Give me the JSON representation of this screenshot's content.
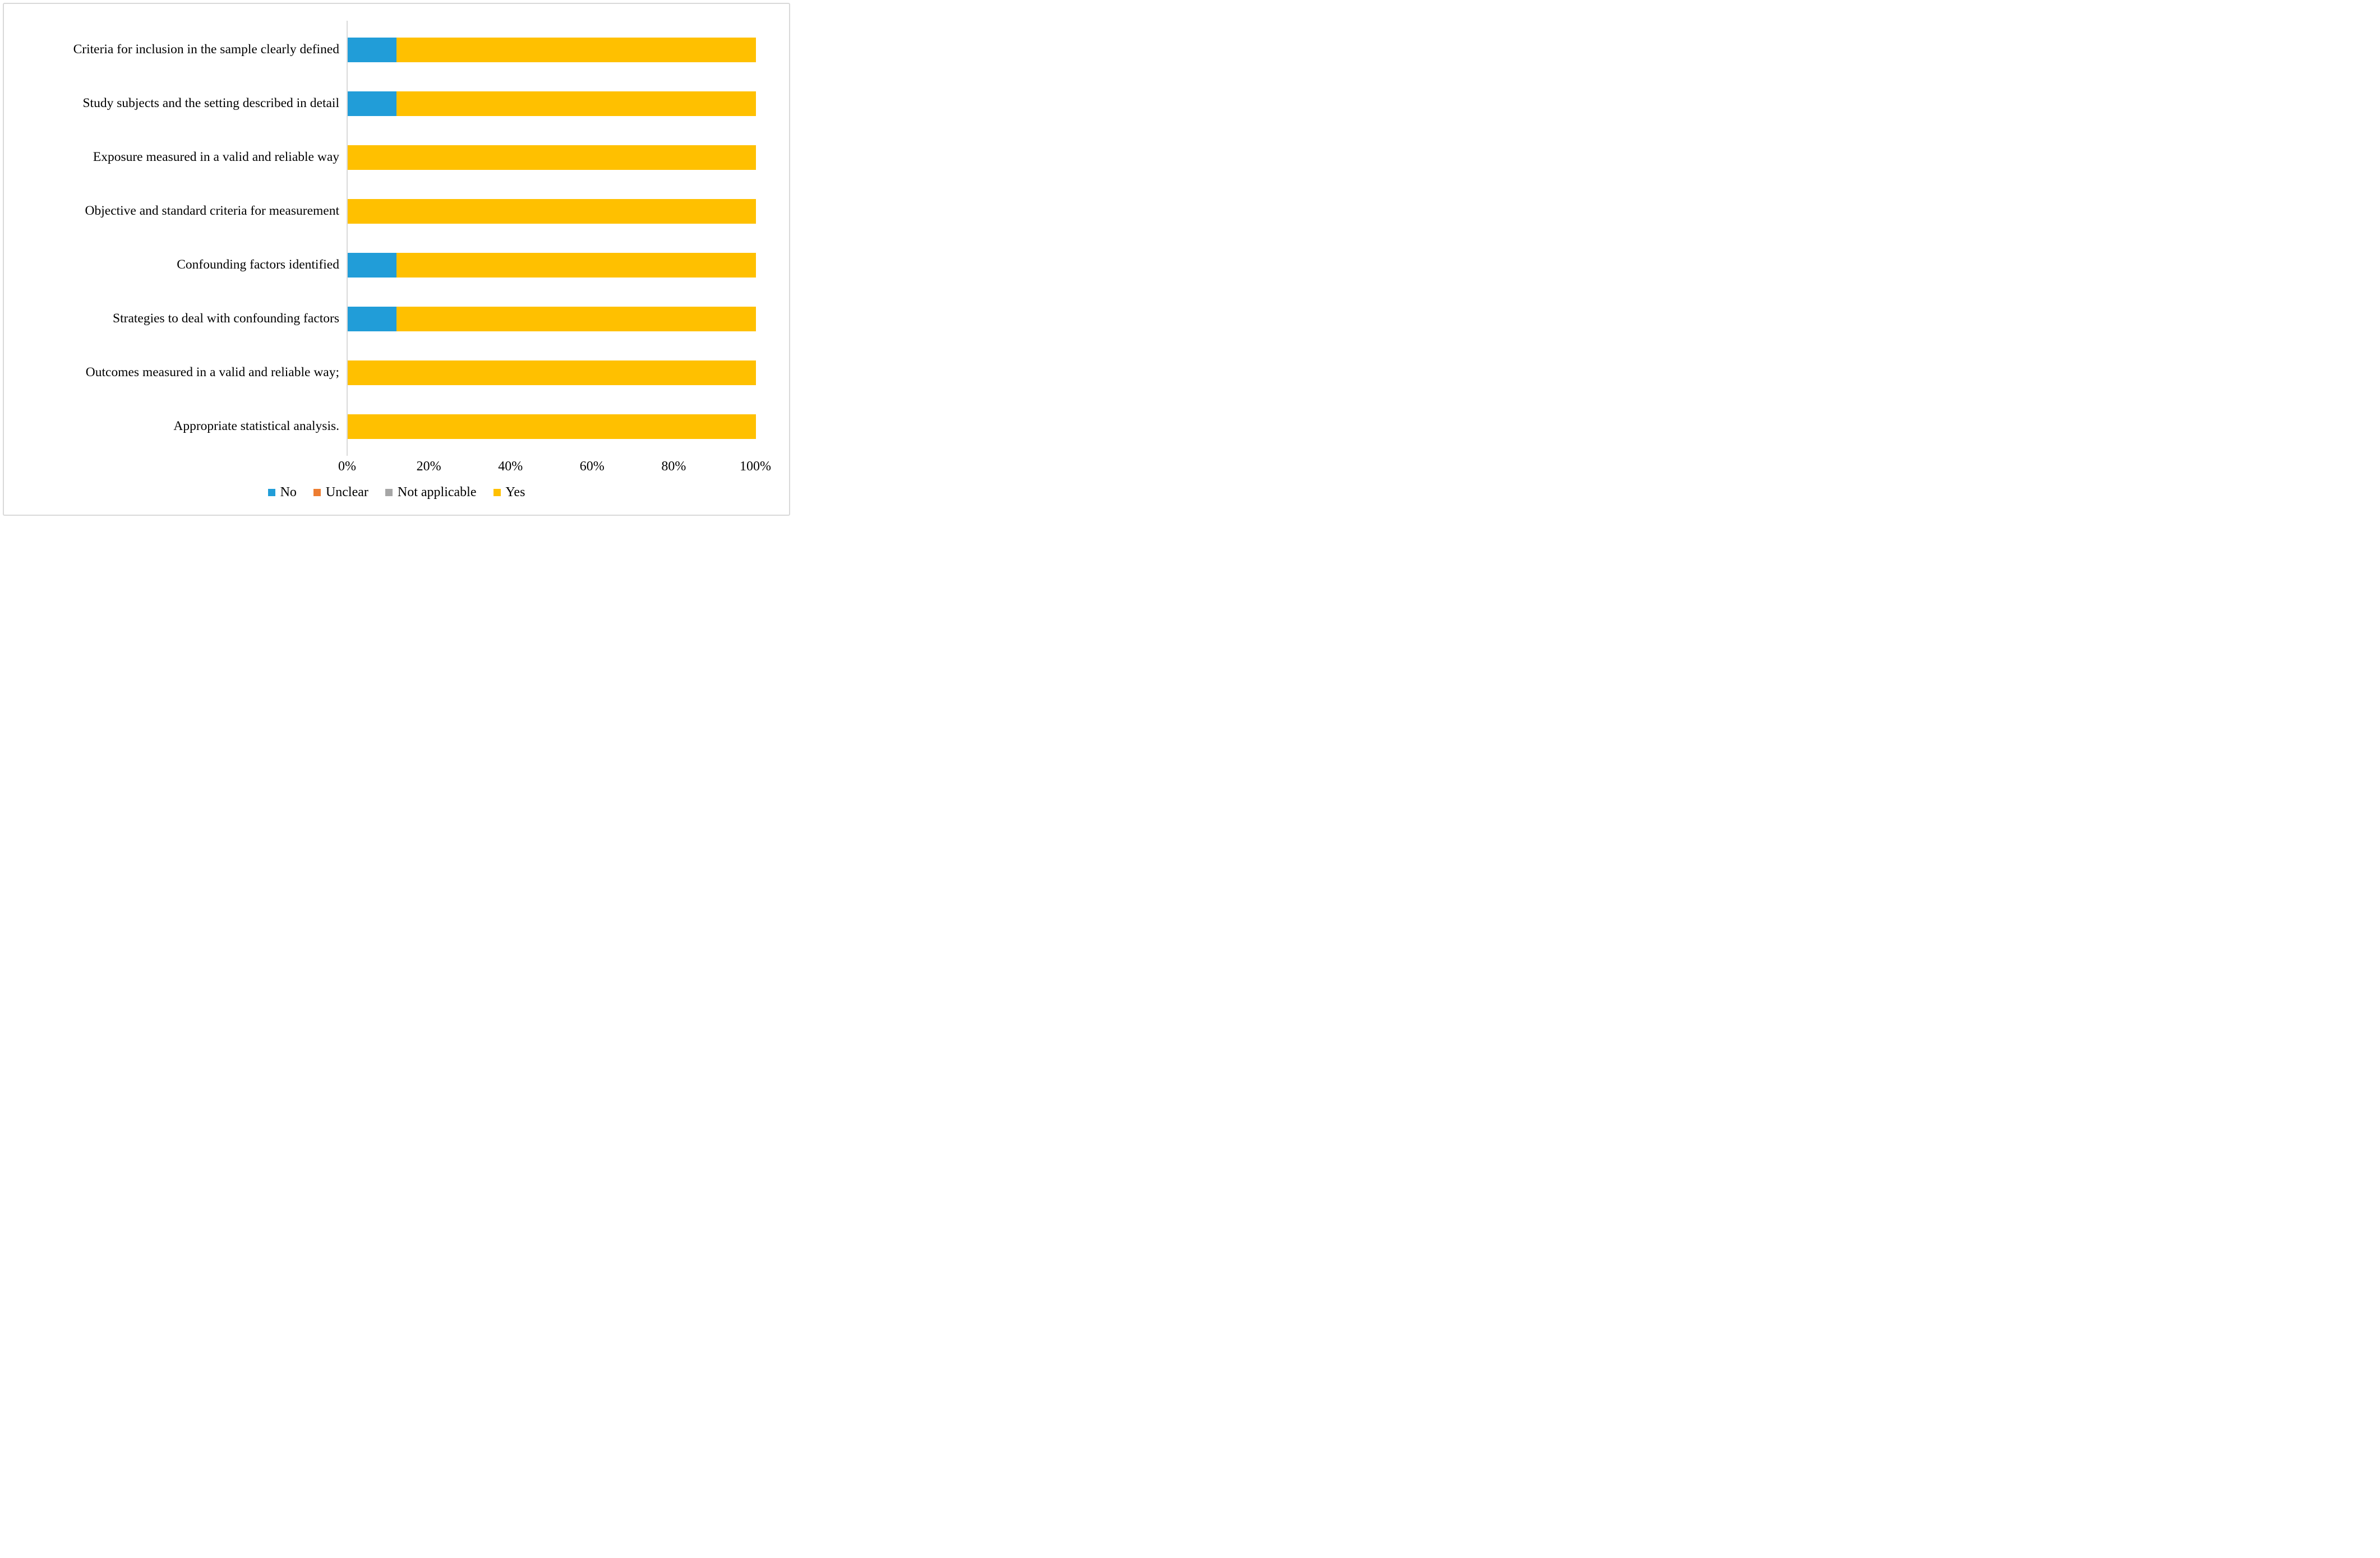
{
  "figure": {
    "background": "#FFFFFF",
    "border_color": "#D9D9D9",
    "axis_line_color": "#D9D9D9",
    "text_color": "#000000"
  },
  "chart_data": {
    "type": "bar",
    "orientation": "horizontal",
    "stacked": true,
    "stacked_total": 100,
    "title": "",
    "xlabel": "",
    "ylabel": "",
    "grid": false,
    "categories": [
      "Criteria for inclusion in the sample clearly defined",
      "Study subjects and the setting described in detail",
      "Exposure measured in a valid and reliable way",
      "Objective and standard criteria for measurement",
      "Confounding factors identified",
      "Strategies to deal with confounding factors",
      "Outcomes measured in a valid and reliable way;",
      "Appropriate statistical analysis."
    ],
    "series": [
      {
        "name": "No",
        "color": "#219DD8",
        "values": [
          12,
          12,
          0,
          0,
          12,
          12,
          0,
          0
        ]
      },
      {
        "name": "Unclear",
        "color": "#ED7D31",
        "values": [
          0,
          0,
          0,
          0,
          0,
          0,
          0,
          0
        ]
      },
      {
        "name": "Not applicable",
        "color": "#A6A6A6",
        "values": [
          0,
          0,
          0,
          0,
          0,
          0,
          0,
          0
        ]
      },
      {
        "name": "Yes",
        "color": "#FFC000",
        "values": [
          88,
          88,
          100,
          100,
          88,
          88,
          100,
          100
        ]
      }
    ],
    "x_axis": {
      "min": 0,
      "max": 100,
      "tick_step": 20,
      "tick_labels": [
        "0%",
        "20%",
        "40%",
        "60%",
        "80%",
        "100%"
      ]
    },
    "legend": {
      "position": "bottom",
      "entries": [
        "No",
        "Unclear",
        "Not applicable",
        "Yes"
      ]
    }
  }
}
